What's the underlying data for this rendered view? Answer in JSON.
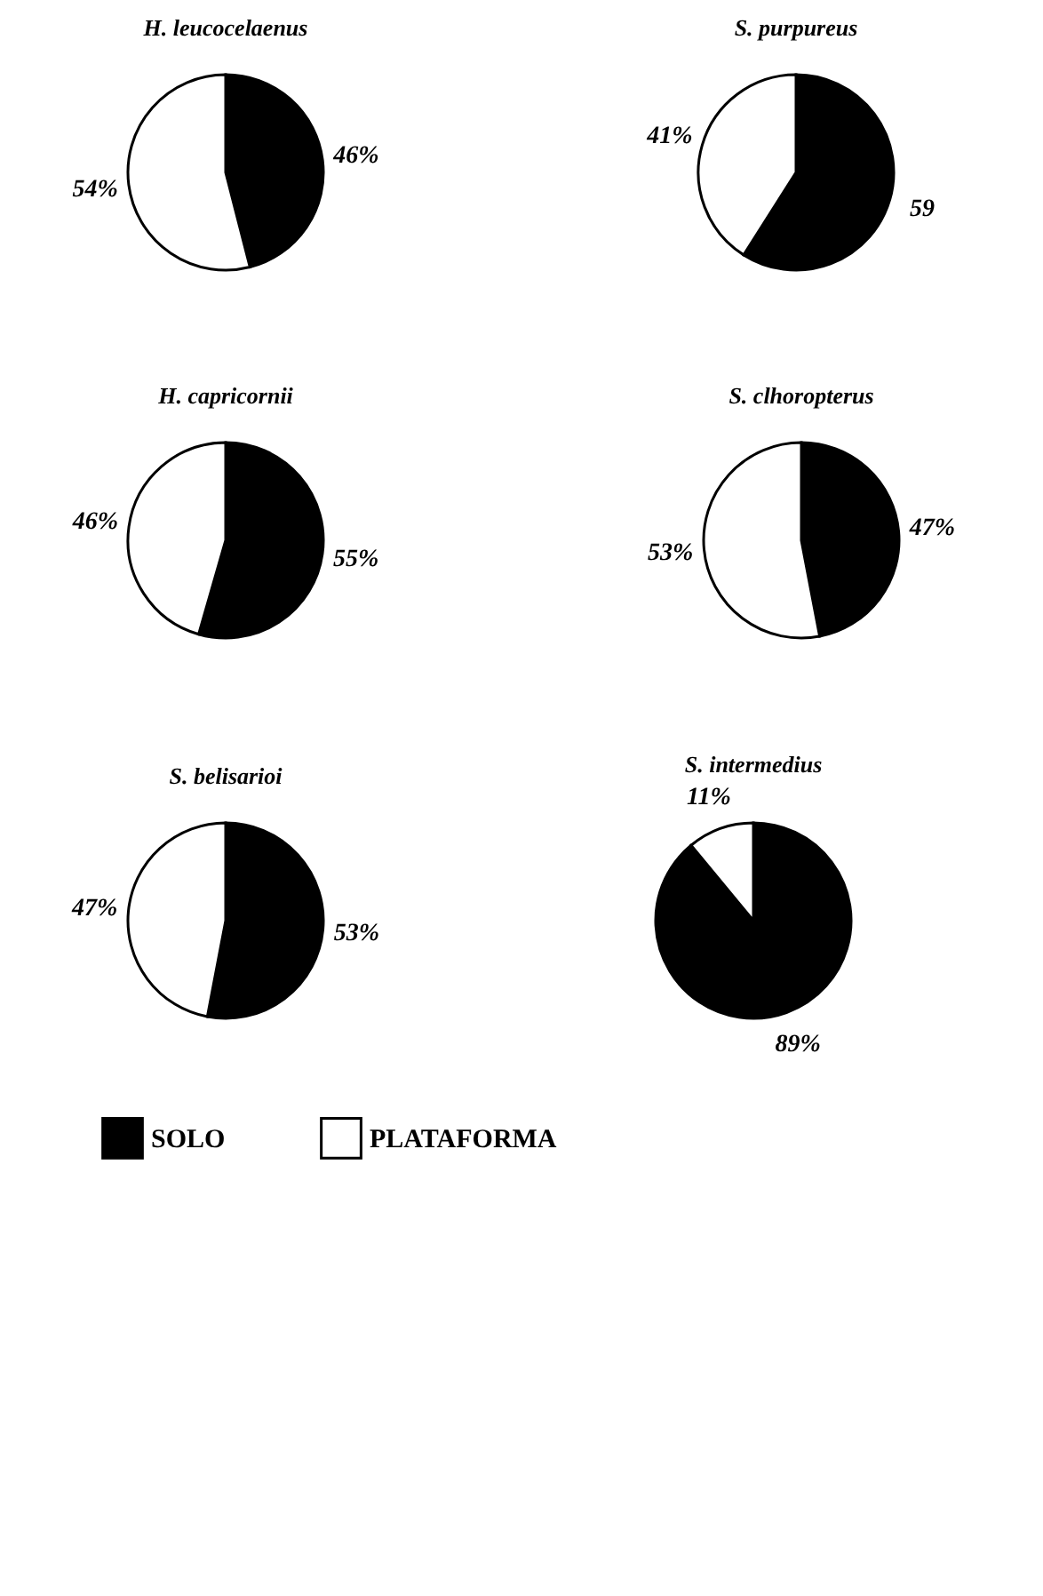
{
  "chart_data": [
    {
      "type": "pie",
      "title": "H. leucocelaenus",
      "categories": [
        null,
        null
      ],
      "values": [
        46,
        54
      ],
      "colors": [
        "#000000",
        "#ffffff"
      ],
      "value_labels": [
        "46%",
        "54%"
      ]
    },
    {
      "type": "pie",
      "title": "S. purpureus",
      "categories": [
        null,
        null
      ],
      "values": [
        59,
        41
      ],
      "colors": [
        "#000000",
        "#ffffff"
      ],
      "value_labels": [
        "59",
        "41%"
      ]
    },
    {
      "type": "pie",
      "title": "H. capricornii",
      "categories": [
        null,
        null
      ],
      "values": [
        55,
        46
      ],
      "colors": [
        "#000000",
        "#ffffff"
      ],
      "value_labels": [
        "55%",
        "46%"
      ]
    },
    {
      "type": "pie",
      "title": "S. clhoropterus",
      "categories": [
        null,
        null
      ],
      "values": [
        47,
        53
      ],
      "colors": [
        "#000000",
        "#ffffff"
      ],
      "value_labels": [
        "47%",
        "53%"
      ]
    },
    {
      "type": "pie",
      "title": "S. belisarioi",
      "categories": [
        "SOLO",
        "PLATAFORMA"
      ],
      "values": [
        53,
        47
      ],
      "colors": [
        "#000000",
        "#ffffff"
      ],
      "value_labels": [
        "53%",
        "47%"
      ],
      "legend": "bottom"
    },
    {
      "type": "pie",
      "title": "S. intermedius",
      "categories": [
        null,
        null
      ],
      "values": [
        89,
        11
      ],
      "colors": [
        "#000000",
        "#ffffff"
      ],
      "value_labels": [
        "89%",
        "11%"
      ]
    }
  ]
}
